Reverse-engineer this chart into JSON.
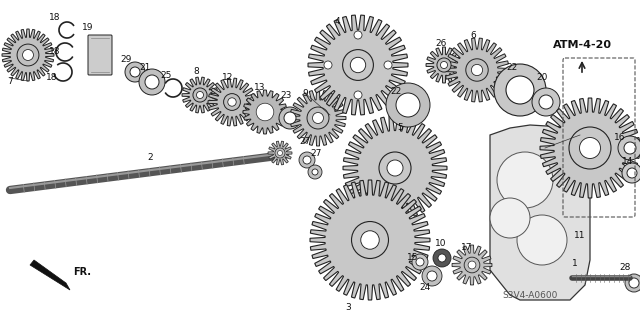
{
  "bg_color": "#ffffff",
  "figsize": [
    6.4,
    3.19
  ],
  "dpi": 100,
  "atm_label": "ATM-4-20",
  "watermark": "S3V4-A0600"
}
